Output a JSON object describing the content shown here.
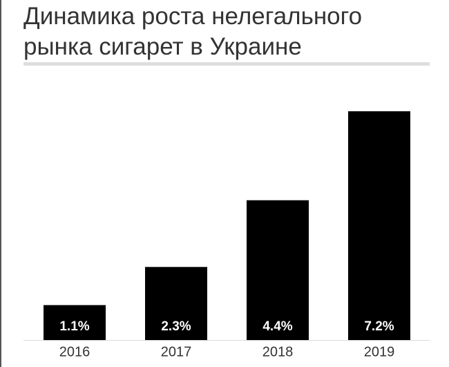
{
  "chart_data": {
    "type": "bar",
    "title": "Динамика роста нелегального рынка сигарет в Украине",
    "categories": [
      "2016",
      "2017",
      "2018",
      "2019"
    ],
    "values": [
      1.1,
      2.3,
      4.4,
      7.2
    ],
    "value_labels": [
      "1.1%",
      "2.3%",
      "4.4%",
      "7.2%"
    ],
    "color": "#000000"
  }
}
